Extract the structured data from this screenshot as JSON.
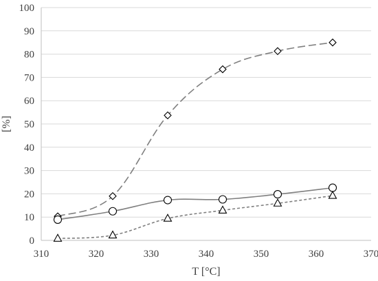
{
  "chart_data": {
    "type": "scatter",
    "xlabel": "T [°C]",
    "ylabel": "[%]",
    "xlim": [
      310,
      370
    ],
    "ylim": [
      0,
      100
    ],
    "x_ticks": [
      310,
      320,
      330,
      340,
      350,
      360,
      370
    ],
    "y_ticks": [
      0,
      10,
      20,
      30,
      40,
      50,
      60,
      70,
      80,
      90,
      100
    ],
    "grid": "horizontal",
    "legend": "none",
    "series": [
      {
        "marker": "diamond",
        "line": "long-dash smoothed",
        "color": "#7f7f7f",
        "x": [
          313,
          323,
          333,
          343,
          353,
          363
        ],
        "y": [
          10.3,
          19.0,
          53.7,
          73.5,
          81.3,
          85.0
        ]
      },
      {
        "marker": "circle",
        "line": "solid smoothed",
        "color": "#7f7f7f",
        "x": [
          313,
          323,
          333,
          343,
          353,
          363
        ],
        "y": [
          8.9,
          12.5,
          17.3,
          17.6,
          19.8,
          22.6
        ]
      },
      {
        "marker": "triangle",
        "line": "short-dash smoothed",
        "color": "#7f7f7f",
        "x": [
          313,
          323,
          333,
          343,
          353,
          363
        ],
        "y": [
          0.8,
          2.2,
          9.4,
          12.9,
          15.9,
          19.2
        ]
      }
    ]
  }
}
